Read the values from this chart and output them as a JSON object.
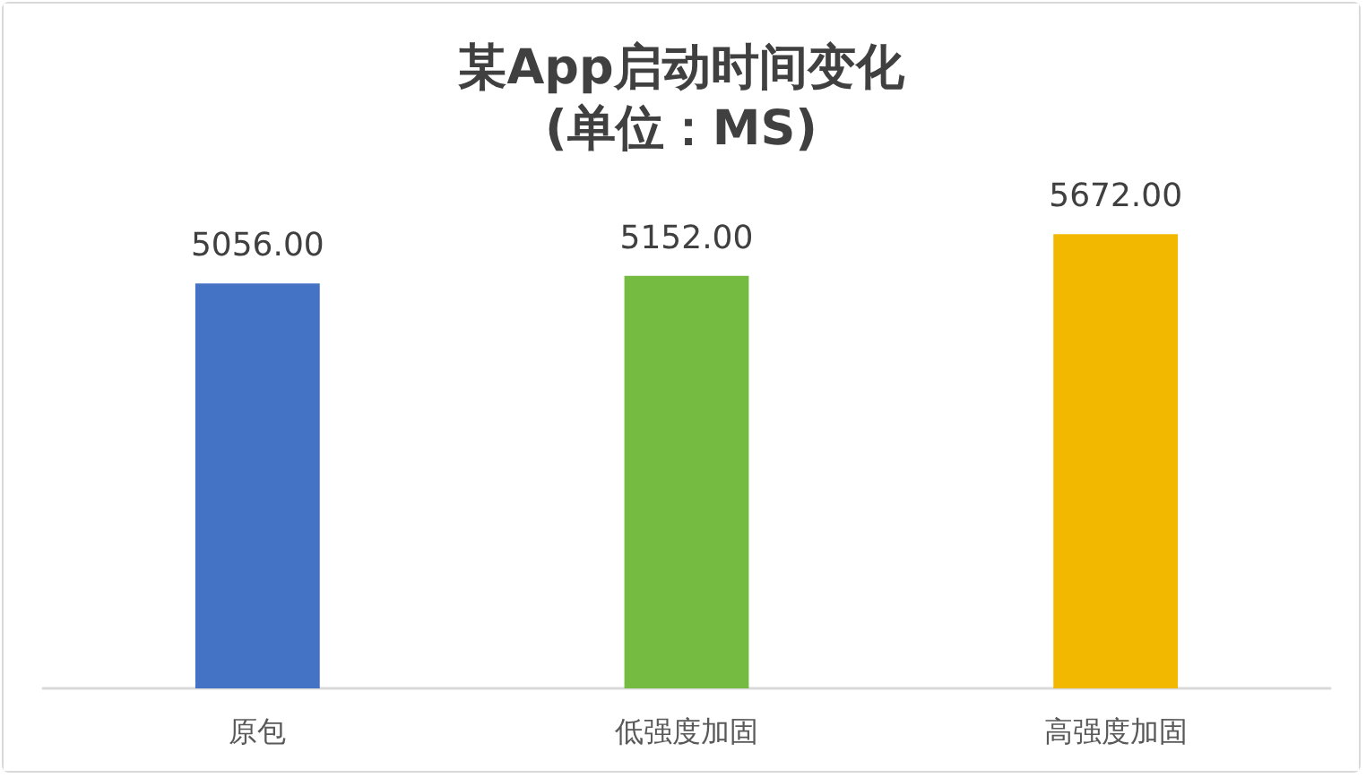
{
  "chart_data": {
    "type": "bar",
    "title": "某App启动时间变化\n(单位：MS)",
    "categories": [
      "原包",
      "低强度加固",
      "高强度加固"
    ],
    "values": [
      5056,
      5152,
      5672
    ],
    "value_labels": [
      "5056.00",
      "5152.00",
      "5672.00"
    ],
    "colors": [
      "#4472c4",
      "#75bb42",
      "#f2b800"
    ]
  }
}
